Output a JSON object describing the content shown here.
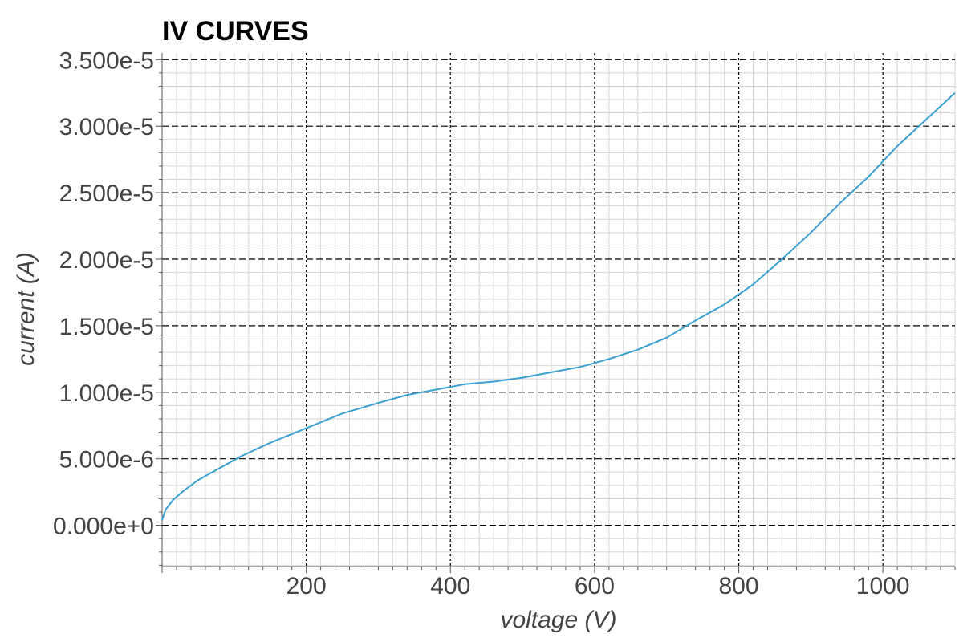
{
  "chart_data": {
    "type": "line",
    "title": "IV CURVES",
    "xlabel": "voltage (V)",
    "ylabel": "current (A)",
    "xlim": [
      0,
      1100
    ],
    "ylim": [
      -3.1e-06,
      3.55e-05
    ],
    "x_ticks": [
      200,
      400,
      600,
      800,
      1000
    ],
    "x_tick_labels": [
      "200",
      "400",
      "600",
      "800",
      "1000"
    ],
    "y_ticks": [
      0,
      5e-06,
      1e-05,
      1.5e-05,
      2e-05,
      2.5e-05,
      3e-05,
      3.5e-05
    ],
    "y_tick_labels": [
      "0.000e+0",
      "5.000e-6",
      "1.000e-5",
      "1.500e-5",
      "2.000e-5",
      "2.500e-5",
      "3.000e-5",
      "3.500e-5"
    ],
    "grid": true,
    "series": [
      {
        "color": "#3a9fd1",
        "x": [
          0,
          5,
          15,
          30,
          50,
          80,
          110,
          150,
          200,
          250,
          300,
          340,
          380,
          420,
          460,
          500,
          540,
          580,
          620,
          660,
          700,
          740,
          780,
          820,
          860,
          900,
          940,
          980,
          1020,
          1060,
          1100
        ],
        "y": [
          4e-07,
          1.2e-06,
          1.9e-06,
          2.6e-06,
          3.4e-06,
          4.3e-06,
          5.2e-06,
          6.2e-06,
          7.3e-06,
          8.4e-06,
          9.2e-06,
          9.8e-06,
          1.02e-05,
          1.06e-05,
          1.08e-05,
          1.11e-05,
          1.15e-05,
          1.19e-05,
          1.25e-05,
          1.32e-05,
          1.41e-05,
          1.54e-05,
          1.66e-05,
          1.81e-05,
          2e-05,
          2.2e-05,
          2.42e-05,
          2.62e-05,
          2.85e-05,
          3.05e-05,
          3.25e-05
        ]
      }
    ]
  }
}
